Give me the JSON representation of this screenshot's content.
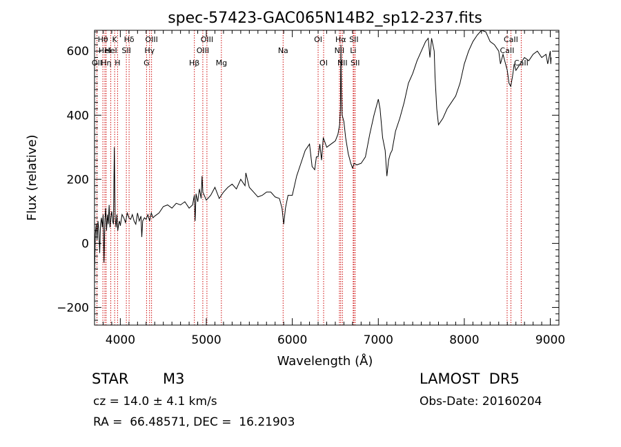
{
  "chart_data": {
    "type": "line",
    "title": "spec-57423-GAC065N14B2_sp12-237.fits",
    "xlabel": "Wavelength (Å)",
    "ylabel": "Flux (relative)",
    "xlim": [
      3700,
      9100
    ],
    "ylim": [
      -255,
      665
    ],
    "x_ticks": [
      4000,
      5000,
      6000,
      7000,
      8000,
      9000
    ],
    "x_tick_labels": [
      "4000",
      "5000",
      "6000",
      "7000",
      "8000",
      "9000"
    ],
    "y_ticks": [
      -200,
      0,
      200,
      400,
      600
    ],
    "y_tick_labels": [
      "−200",
      "0",
      "200",
      "400",
      "600"
    ],
    "grid": false,
    "line_color": "#000000",
    "marker_color": "#cc0000",
    "series": [
      {
        "x": [
          3700,
          3710,
          3720,
          3730,
          3740,
          3750,
          3760,
          3770,
          3780,
          3790,
          3800,
          3810,
          3820,
          3830,
          3840,
          3850,
          3860,
          3870,
          3880,
          3890,
          3900,
          3910,
          3920,
          3930,
          3940,
          3950,
          3960,
          3970,
          3980,
          3990,
          4000,
          4020,
          4040,
          4060,
          4080,
          4100,
          4120,
          4140,
          4160,
          4180,
          4200,
          4220,
          4240,
          4250,
          4260,
          4280,
          4300,
          4320,
          4340,
          4360,
          4380,
          4400,
          4450,
          4500,
          4550,
          4600,
          4650,
          4700,
          4750,
          4800,
          4840,
          4860,
          4870,
          4880,
          4900,
          4920,
          4940,
          4950,
          4960,
          5000,
          5050,
          5100,
          5150,
          5200,
          5250,
          5300,
          5350,
          5400,
          5450,
          5460,
          5500,
          5550,
          5600,
          5650,
          5700,
          5750,
          5800,
          5850,
          5880,
          5900,
          5920,
          5950,
          6000,
          6050,
          6100,
          6150,
          6200,
          6230,
          6260,
          6280,
          6300,
          6320,
          6340,
          6360,
          6400,
          6450,
          6500,
          6530,
          6550,
          6560,
          6565,
          6570,
          6580,
          6600,
          6620,
          6650,
          6680,
          6700,
          6720,
          6750,
          6800,
          6850,
          6900,
          6950,
          7000,
          7020,
          7050,
          7080,
          7100,
          7120,
          7140,
          7160,
          7200,
          7250,
          7300,
          7350,
          7400,
          7450,
          7500,
          7550,
          7580,
          7600,
          7620,
          7650,
          7660,
          7680,
          7700,
          7750,
          7800,
          7850,
          7900,
          7950,
          8000,
          8050,
          8100,
          8150,
          8200,
          8250,
          8300,
          8350,
          8400,
          8420,
          8450,
          8480,
          8500,
          8520,
          8540,
          8560,
          8580,
          8600,
          8650,
          8700,
          8750,
          8800,
          8850,
          8900,
          8950,
          8970,
          9000,
          9005,
          9010
        ],
        "y": [
          -100,
          30,
          60,
          10,
          70,
          40,
          -30,
          60,
          80,
          50,
          90,
          -60,
          70,
          110,
          40,
          90,
          60,
          120,
          50,
          80,
          100,
          70,
          60,
          300,
          80,
          50,
          90,
          40,
          60,
          70,
          55,
          90,
          80,
          65,
          95,
          80,
          75,
          90,
          70,
          60,
          95,
          70,
          85,
          20,
          70,
          80,
          75,
          90,
          70,
          95,
          80,
          85,
          95,
          115,
          120,
          110,
          125,
          120,
          130,
          110,
          120,
          150,
          70,
          155,
          130,
          170,
          140,
          210,
          160,
          135,
          150,
          175,
          140,
          160,
          175,
          185,
          170,
          200,
          180,
          220,
          175,
          160,
          145,
          150,
          160,
          160,
          145,
          140,
          110,
          60,
          110,
          150,
          150,
          210,
          250,
          290,
          310,
          240,
          230,
          270,
          270,
          310,
          260,
          330,
          300,
          310,
          320,
          340,
          370,
          420,
          620,
          480,
          400,
          380,
          330,
          280,
          250,
          235,
          250,
          245,
          250,
          270,
          340,
          400,
          450,
          420,
          330,
          290,
          210,
          260,
          280,
          290,
          350,
          390,
          440,
          500,
          530,
          570,
          600,
          630,
          640,
          580,
          640,
          600,
          520,
          420,
          370,
          390,
          420,
          440,
          460,
          500,
          560,
          600,
          630,
          650,
          665,
          660,
          630,
          620,
          600,
          560,
          590,
          560,
          540,
          500,
          490,
          520,
          560,
          540,
          560,
          580,
          570,
          590,
          600,
          580,
          590,
          560,
          600,
          560,
          580
        ]
      }
    ],
    "line_markers": [
      {
        "x": 3728,
        "label": "OII",
        "row": 2
      },
      {
        "x": 3797,
        "label": "Hθ",
        "row": 0
      },
      {
        "x": 3820,
        "label": "HeI",
        "row": 1
      },
      {
        "x": 3835,
        "label": "Hη",
        "row": 2
      },
      {
        "x": 3889,
        "label": "HeI",
        "row": 1
      },
      {
        "x": 3934,
        "label": "K",
        "row": 0
      },
      {
        "x": 3968,
        "label": "H",
        "row": 2
      },
      {
        "x": 4070,
        "label": "SII",
        "row": 1
      },
      {
        "x": 4102,
        "label": "Hδ",
        "row": 0
      },
      {
        "x": 4305,
        "label": "G",
        "row": 2
      },
      {
        "x": 4340,
        "label": "Hγ",
        "row": 1
      },
      {
        "x": 4363,
        "label": "OIII",
        "row": 0
      },
      {
        "x": 4861,
        "label": "Hβ",
        "row": 2
      },
      {
        "x": 4959,
        "label": "OIII",
        "row": 1
      },
      {
        "x": 5007,
        "label": "OIII",
        "row": 0
      },
      {
        "x": 5175,
        "label": "Mg",
        "row": 2
      },
      {
        "x": 5893,
        "label": "Na",
        "row": 1
      },
      {
        "x": 6300,
        "label": "OI",
        "row": 0
      },
      {
        "x": 6364,
        "label": "OI",
        "row": 2
      },
      {
        "x": 6548,
        "label": "NII",
        "row": 1
      },
      {
        "x": 6563,
        "label": "Hα",
        "row": 0
      },
      {
        "x": 6583,
        "label": "NII",
        "row": 2
      },
      {
        "x": 6708,
        "label": "Li",
        "row": 1
      },
      {
        "x": 6716,
        "label": "SII",
        "row": 0
      },
      {
        "x": 6731,
        "label": "SII",
        "row": 2
      },
      {
        "x": 8498,
        "label": "CaII",
        "row": 1
      },
      {
        "x": 8542,
        "label": "CaII",
        "row": 0
      },
      {
        "x": 8662,
        "label": "CaII",
        "row": 2
      }
    ]
  },
  "info": {
    "object_class": "STAR",
    "subclass": "M3",
    "survey": "LAMOST  DR5",
    "redshift_line": "cz = 14.0 ± 4.1 km/s",
    "obs_date_line": "Obs-Date: 20160204",
    "coords_line": "RA =  66.48571, DEC =  16.21903"
  }
}
